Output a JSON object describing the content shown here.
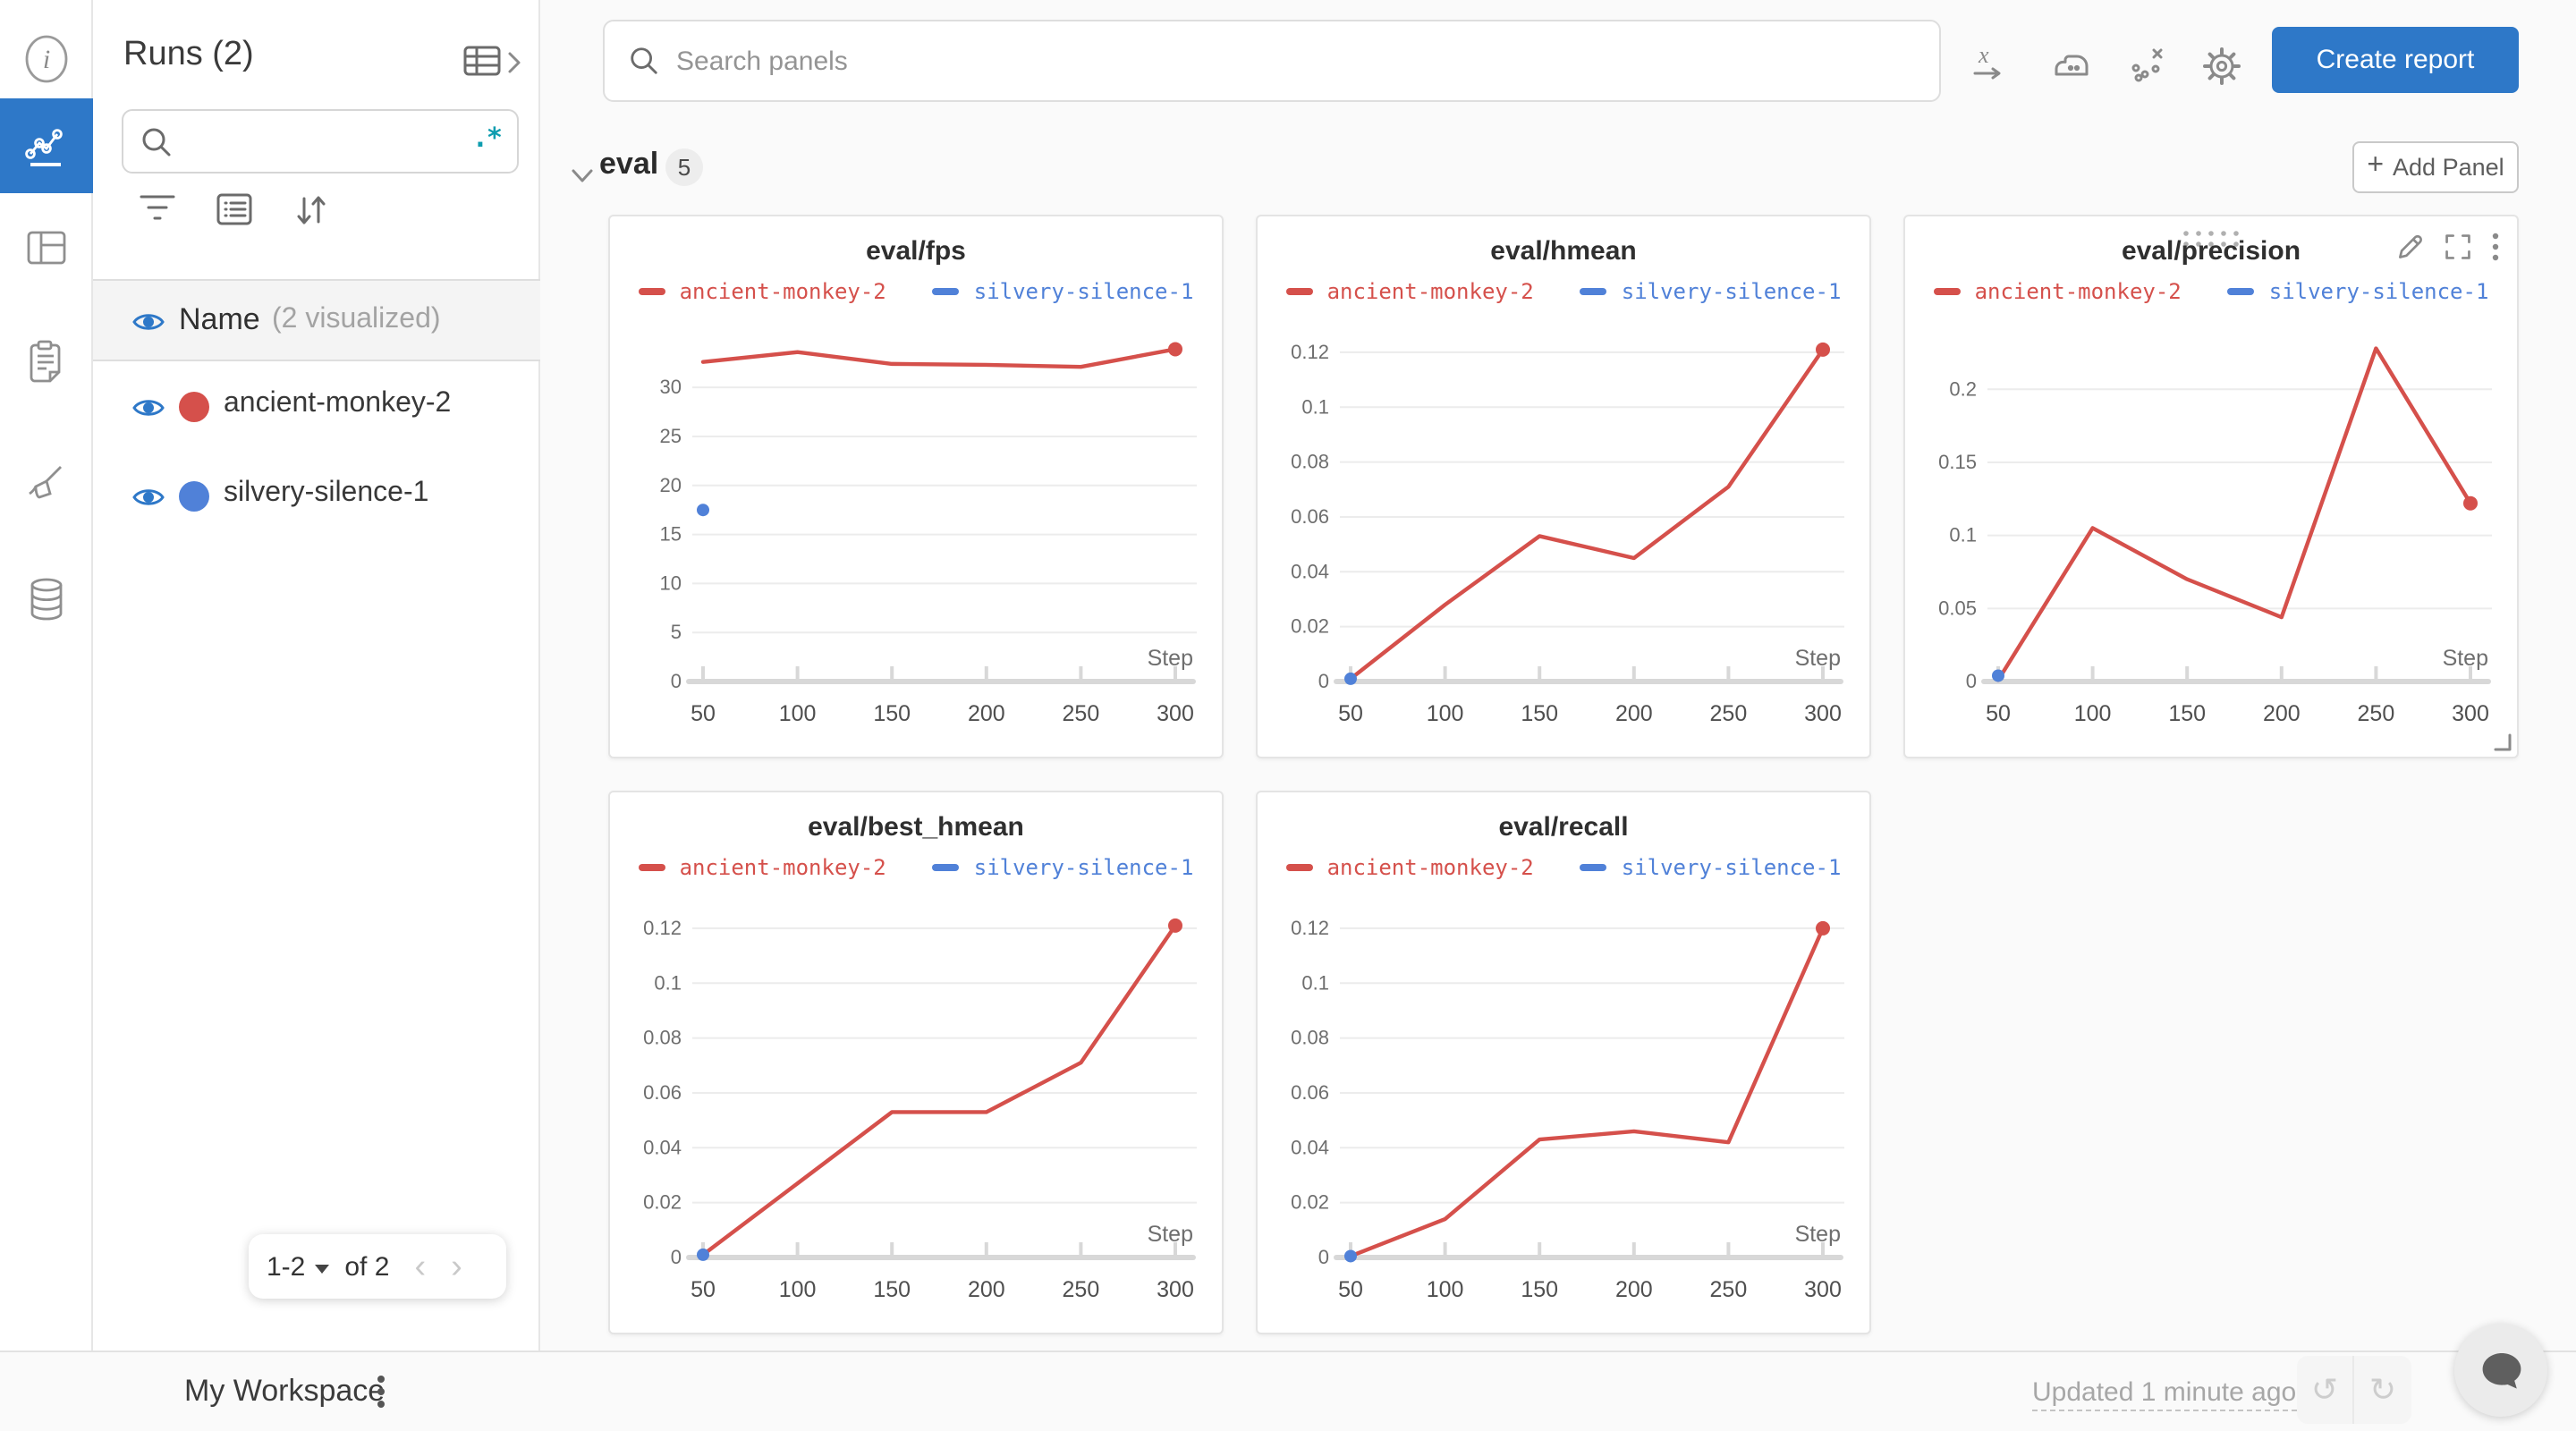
{
  "left_rail": {
    "icons": [
      "info",
      "line-chart",
      "table",
      "clipboard",
      "broom",
      "database"
    ],
    "active_icon": "line-chart"
  },
  "runs_panel": {
    "title": "Runs (2)",
    "search_value": "",
    "regex_icon": ".*",
    "columns_header": {
      "name": "Name",
      "note": "(2 visualized)"
    },
    "runs": [
      {
        "name": "ancient-monkey-2",
        "color": "#d5504b"
      },
      {
        "name": "silvery-silence-1",
        "color": "#5081d8"
      }
    ],
    "pagination": {
      "range": "1-2",
      "of": "of 2"
    }
  },
  "topbar": {
    "search_placeholder": "Search panels",
    "create_report": "Create report"
  },
  "section": {
    "title": "eval",
    "badge": "5",
    "add_panel": "Add Panel",
    "plus": "+"
  },
  "footer": {
    "workspace": "My Workspace",
    "updated": "Updated 1 minute ago",
    "undo": "↺",
    "redo": "↻"
  },
  "colors": {
    "accent_blue": "#2e78c8",
    "run_red": "#d5504b",
    "run_blue": "#5081d8",
    "teal": "#0e9daf"
  },
  "chart_data": [
    {
      "type": "line",
      "title": "eval/fps",
      "xlabel": "Step",
      "x": [
        50,
        100,
        150,
        200,
        250,
        300
      ],
      "xticks": [
        50,
        100,
        150,
        200,
        250,
        300
      ],
      "yticks": [
        [
          0,
          "0"
        ],
        [
          5,
          "5"
        ],
        [
          10,
          "10"
        ],
        [
          15,
          "15"
        ],
        [
          20,
          "20"
        ],
        [
          25,
          "25"
        ],
        [
          30,
          "30"
        ]
      ],
      "ylim": [
        0,
        35.4
      ],
      "grid": true,
      "legend_position": "top",
      "hovered": false,
      "series": [
        {
          "name": "ancient-monkey-2",
          "color": "#d5504b",
          "values": [
            32.6,
            33.6,
            32.4,
            32.3,
            32.1,
            33.9
          ],
          "end_dot": true
        },
        {
          "name": "silvery-silence-1",
          "color": "#5081d8",
          "values": [
            17.5,
            null,
            null,
            null,
            null,
            null
          ]
        }
      ]
    },
    {
      "type": "line",
      "title": "eval/hmean",
      "xlabel": "Step",
      "x": [
        50,
        100,
        150,
        200,
        250,
        300
      ],
      "xticks": [
        50,
        100,
        150,
        200,
        250,
        300
      ],
      "yticks": [
        [
          0,
          "0"
        ],
        [
          0.02,
          "0.02"
        ],
        [
          0.04,
          "0.04"
        ],
        [
          0.06,
          "0.06"
        ],
        [
          0.08,
          "0.08"
        ],
        [
          0.1,
          "0.1"
        ],
        [
          0.12,
          "0.12"
        ]
      ],
      "ylim": [
        0,
        0.1265
      ],
      "grid": true,
      "legend_position": "top",
      "hovered": false,
      "series": [
        {
          "name": "ancient-monkey-2",
          "color": "#d5504b",
          "values": [
            0.001,
            0.028,
            0.053,
            0.045,
            0.071,
            0.121
          ],
          "end_dot": true
        },
        {
          "name": "silvery-silence-1",
          "color": "#5081d8",
          "values": [
            0.001,
            null,
            null,
            null,
            null,
            null
          ]
        }
      ]
    },
    {
      "type": "line",
      "title": "eval/precision",
      "xlabel": "Step",
      "x": [
        50,
        100,
        150,
        200,
        250,
        300
      ],
      "xticks": [
        50,
        100,
        150,
        200,
        250,
        300
      ],
      "yticks": [
        [
          0,
          "0"
        ],
        [
          0.05,
          "0.05"
        ],
        [
          0.1,
          "0.1"
        ],
        [
          0.15,
          "0.15"
        ],
        [
          0.2,
          "0.2"
        ]
      ],
      "ylim": [
        0,
        0.2375
      ],
      "grid": true,
      "legend_position": "top",
      "hovered": true,
      "series": [
        {
          "name": "ancient-monkey-2",
          "color": "#d5504b",
          "values": [
            0.001,
            0.105,
            0.07,
            0.044,
            0.228,
            0.122
          ],
          "end_dot": true
        },
        {
          "name": "silvery-silence-1",
          "color": "#5081d8",
          "values": [
            0.004,
            null,
            null,
            null,
            null,
            null
          ]
        }
      ]
    },
    {
      "type": "line",
      "title": "eval/best_hmean",
      "xlabel": "Step",
      "x": [
        50,
        100,
        150,
        200,
        250,
        300
      ],
      "xticks": [
        50,
        100,
        150,
        200,
        250,
        300
      ],
      "yticks": [
        [
          0,
          "0"
        ],
        [
          0.02,
          "0.02"
        ],
        [
          0.04,
          "0.04"
        ],
        [
          0.06,
          "0.06"
        ],
        [
          0.08,
          "0.08"
        ],
        [
          0.1,
          "0.1"
        ],
        [
          0.12,
          "0.12"
        ]
      ],
      "ylim": [
        0,
        0.1265
      ],
      "grid": true,
      "legend_position": "top",
      "hovered": false,
      "series": [
        {
          "name": "ancient-monkey-2",
          "color": "#d5504b",
          "values": [
            0.001,
            0.027,
            0.053,
            0.053,
            0.071,
            0.121
          ],
          "end_dot": true
        },
        {
          "name": "silvery-silence-1",
          "color": "#5081d8",
          "values": [
            0.001,
            null,
            null,
            null,
            null,
            null
          ]
        }
      ]
    },
    {
      "type": "line",
      "title": "eval/recall",
      "xlabel": "Step",
      "x": [
        50,
        100,
        150,
        200,
        250,
        300
      ],
      "xticks": [
        50,
        100,
        150,
        200,
        250,
        300
      ],
      "yticks": [
        [
          0,
          "0"
        ],
        [
          0.02,
          "0.02"
        ],
        [
          0.04,
          "0.04"
        ],
        [
          0.06,
          "0.06"
        ],
        [
          0.08,
          "0.08"
        ],
        [
          0.1,
          "0.1"
        ],
        [
          0.12,
          "0.12"
        ]
      ],
      "ylim": [
        0,
        0.1265
      ],
      "grid": true,
      "legend_position": "top",
      "hovered": false,
      "series": [
        {
          "name": "ancient-monkey-2",
          "color": "#d5504b",
          "values": [
            0.0005,
            0.014,
            0.043,
            0.046,
            0.042,
            0.12
          ],
          "end_dot": true
        },
        {
          "name": "silvery-silence-1",
          "color": "#5081d8",
          "values": [
            0.0005,
            null,
            null,
            null,
            null,
            null
          ]
        }
      ]
    }
  ]
}
